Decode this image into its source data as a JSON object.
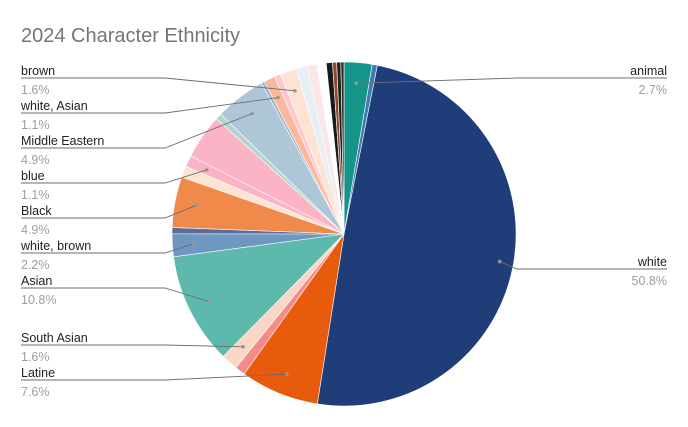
{
  "chart_data": {
    "type": "pie",
    "title": "2024 Character Ethnicity",
    "slices": [
      {
        "label": "animal",
        "value": 2.7,
        "color": "#15958a",
        "shown": true
      },
      {
        "label": "",
        "value": 0.5,
        "color": "#3d7cb3",
        "shown": false
      },
      {
        "label": "white",
        "value": 50.8,
        "color": "#1f3d78",
        "shown": true
      },
      {
        "label": "Latine",
        "value": 7.6,
        "color": "#e85a0c",
        "shown": true
      },
      {
        "label": "",
        "value": 1.0,
        "color": "#f48b8b",
        "shown": false
      },
      {
        "label": "South Asian",
        "value": 1.6,
        "color": "#fcd6c4",
        "shown": true
      },
      {
        "label": "Asian",
        "value": 10.8,
        "color": "#5db9ab",
        "shown": true
      },
      {
        "label": "white, brown",
        "value": 2.2,
        "color": "#6e98c2",
        "shown": true
      },
      {
        "label": "",
        "value": 0.6,
        "color": "#5d6b96",
        "shown": false
      },
      {
        "label": "Black",
        "value": 4.9,
        "color": "#f08a4b",
        "shown": true
      },
      {
        "label": "",
        "value": 1.1,
        "color": "#fde4d2",
        "shown": false
      },
      {
        "label": "blue",
        "value": 1.1,
        "color": "#fbb3c6",
        "shown": true
      },
      {
        "label": "",
        "value": 4.3,
        "color": "#fbb3c6",
        "shown": false
      },
      {
        "label": "",
        "value": 0.6,
        "color": "#b2d4cc",
        "shown": false
      },
      {
        "label": "Middle Eastern",
        "value": 4.9,
        "color": "#aec7d8",
        "shown": true
      },
      {
        "label": "",
        "value": 0.3,
        "color": "#9fb0cb",
        "shown": false
      },
      {
        "label": "white, Asian",
        "value": 1.1,
        "color": "#fbb89a",
        "shown": true
      },
      {
        "label": "",
        "value": 0.6,
        "color": "#fcc7d3",
        "shown": false
      },
      {
        "label": "brown",
        "value": 1.6,
        "color": "#fde4d2",
        "shown": true
      },
      {
        "label": "",
        "value": 1.0,
        "color": "#e6eef6",
        "shown": false
      },
      {
        "label": "",
        "value": 1.0,
        "color": "#fbe7e7",
        "shown": false
      },
      {
        "label": "",
        "value": 0.9,
        "color": "#ffffff",
        "shown": false
      },
      {
        "label": "",
        "value": 0.6,
        "color": "#1a1a1a",
        "shown": false
      },
      {
        "label": "",
        "value": 0.4,
        "color": "#8c4a2f",
        "shown": false
      },
      {
        "label": "",
        "value": 0.4,
        "color": "#222222",
        "shown": false
      },
      {
        "label": "",
        "value": 0.3,
        "color": "#3a2d22",
        "shown": false
      }
    ],
    "labels": [
      {
        "name": "animal",
        "pct": "2.7%",
        "side": "right"
      },
      {
        "name": "white",
        "pct": "50.8%",
        "side": "right"
      },
      {
        "name": "brown",
        "pct": "1.6%",
        "side": "left"
      },
      {
        "name": "white, Asian",
        "pct": "1.1%",
        "side": "left"
      },
      {
        "name": "Middle Eastern",
        "pct": "4.9%",
        "side": "left"
      },
      {
        "name": "blue",
        "pct": "1.1%",
        "side": "left"
      },
      {
        "name": "Black",
        "pct": "4.9%",
        "side": "left"
      },
      {
        "name": "white, brown",
        "pct": "2.2%",
        "side": "left"
      },
      {
        "name": "Asian",
        "pct": "10.8%",
        "side": "left"
      },
      {
        "name": "South Asian",
        "pct": "1.6%",
        "side": "left"
      },
      {
        "name": "Latine",
        "pct": "7.6%",
        "side": "left"
      }
    ],
    "legend": "none"
  }
}
